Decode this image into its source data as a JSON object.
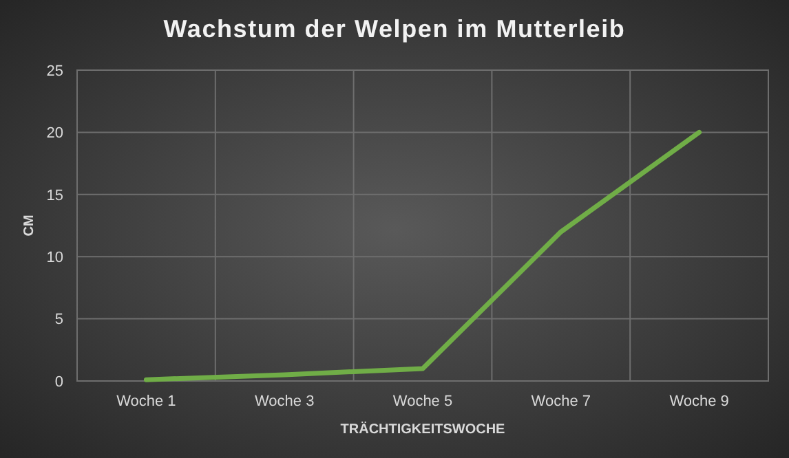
{
  "chart_data": {
    "type": "line",
    "title": "Wachstum der Welpen im Mutterleib",
    "xlabel": "TRÄCHTIGKEITSWOCHE",
    "ylabel": "CM",
    "categories": [
      "Woche 1",
      "Woche 3",
      "Woche 5",
      "Woche 7",
      "Woche 9"
    ],
    "series": [
      {
        "color": "#70ad47",
        "values": [
          0.1,
          0.5,
          1,
          12,
          20
        ]
      }
    ],
    "ylim": [
      0,
      25
    ],
    "yticks": [
      0,
      5,
      10,
      15,
      20,
      25
    ],
    "grid": true,
    "marker": "none",
    "line_style": "solid"
  }
}
